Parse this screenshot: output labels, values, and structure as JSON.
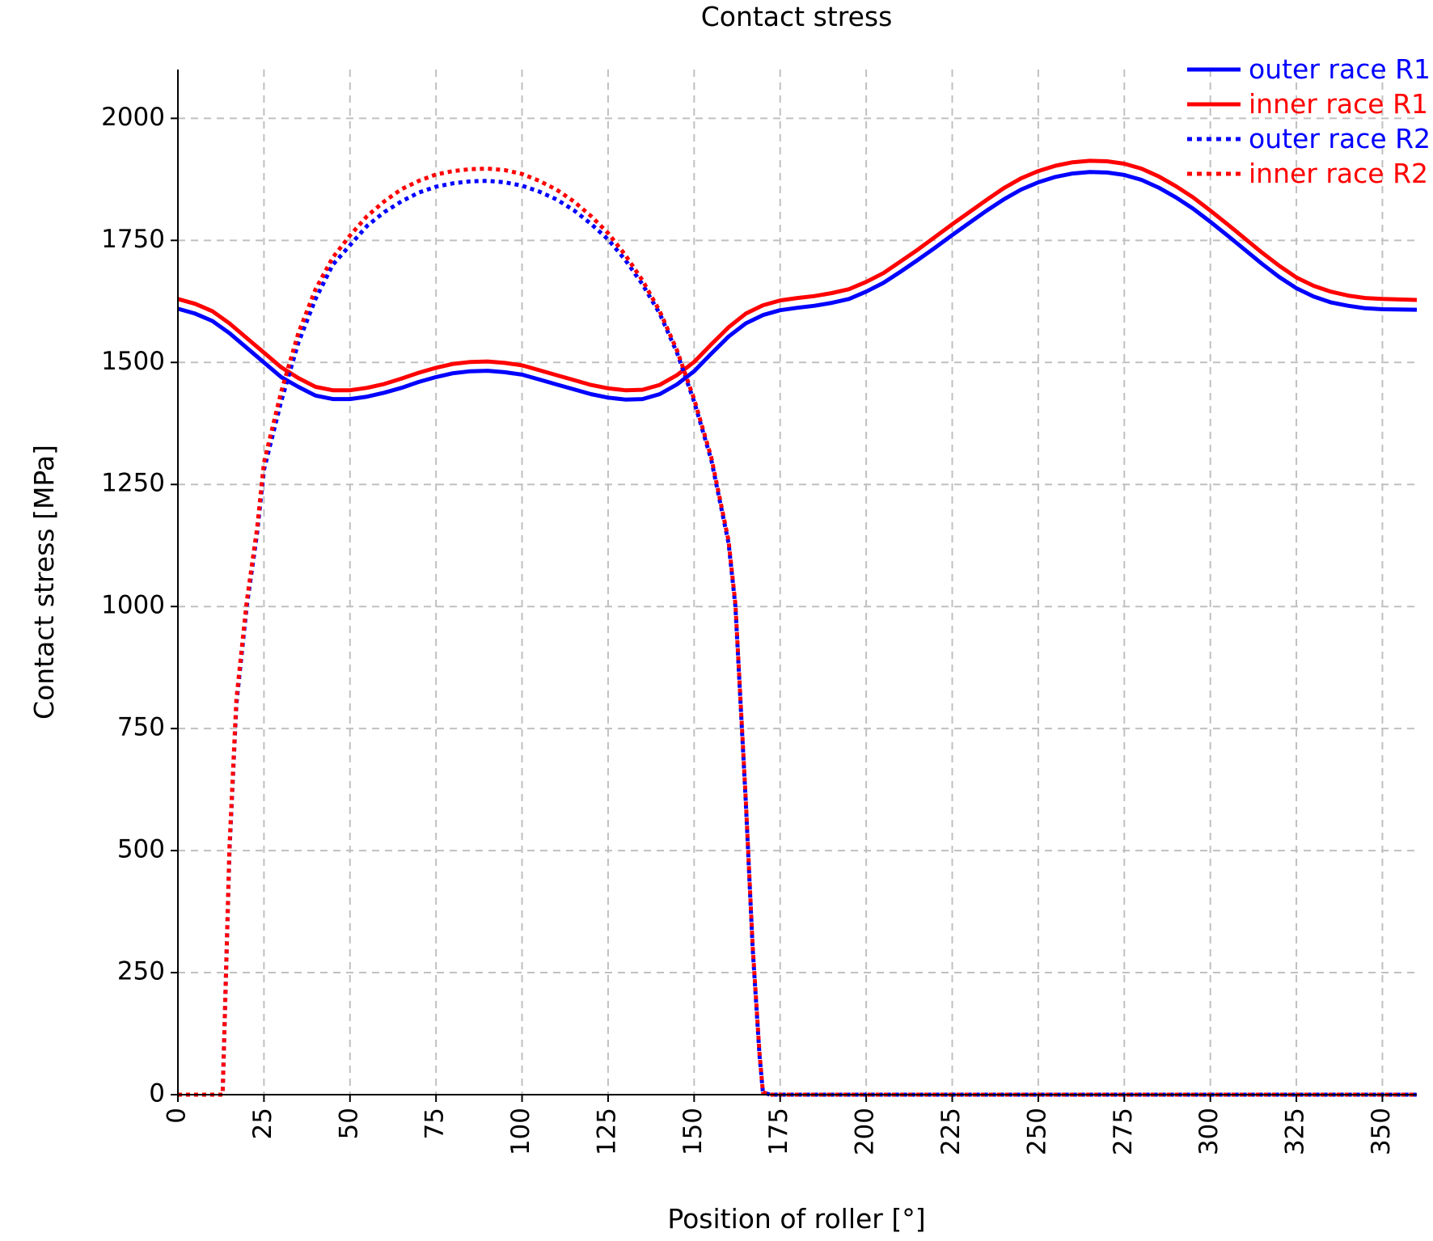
{
  "chart_data": {
    "type": "line",
    "title": "Contact stress",
    "xlabel": "Position of roller [°]",
    "ylabel": "Contact stress [MPa]",
    "xlim": [
      0,
      360
    ],
    "ylim": [
      0,
      2100
    ],
    "x_ticks": [
      0,
      25,
      50,
      75,
      100,
      125,
      150,
      175,
      200,
      225,
      250,
      275,
      300,
      325,
      350
    ],
    "y_ticks": [
      0,
      250,
      500,
      750,
      1000,
      1250,
      1500,
      1750,
      2000
    ],
    "grid": true,
    "legend_position": "top-right",
    "series": [
      {
        "name": "outer race R1",
        "color": "#0000ff",
        "style": "solid",
        "points": [
          [
            0,
            1610
          ],
          [
            5,
            1600
          ],
          [
            10,
            1585
          ],
          [
            15,
            1560
          ],
          [
            20,
            1530
          ],
          [
            25,
            1500
          ],
          [
            30,
            1470
          ],
          [
            35,
            1450
          ],
          [
            40,
            1432
          ],
          [
            45,
            1425
          ],
          [
            50,
            1425
          ],
          [
            55,
            1430
          ],
          [
            60,
            1438
          ],
          [
            65,
            1448
          ],
          [
            70,
            1460
          ],
          [
            75,
            1470
          ],
          [
            80,
            1478
          ],
          [
            85,
            1482
          ],
          [
            90,
            1483
          ],
          [
            95,
            1480
          ],
          [
            100,
            1475
          ],
          [
            105,
            1465
          ],
          [
            110,
            1455
          ],
          [
            115,
            1445
          ],
          [
            120,
            1435
          ],
          [
            125,
            1428
          ],
          [
            130,
            1424
          ],
          [
            135,
            1425
          ],
          [
            140,
            1435
          ],
          [
            145,
            1455
          ],
          [
            150,
            1482
          ],
          [
            155,
            1518
          ],
          [
            160,
            1553
          ],
          [
            165,
            1580
          ],
          [
            170,
            1597
          ],
          [
            175,
            1607
          ],
          [
            180,
            1612
          ],
          [
            185,
            1616
          ],
          [
            190,
            1622
          ],
          [
            195,
            1630
          ],
          [
            200,
            1645
          ],
          [
            205,
            1663
          ],
          [
            210,
            1686
          ],
          [
            215,
            1710
          ],
          [
            220,
            1735
          ],
          [
            225,
            1761
          ],
          [
            230,
            1786
          ],
          [
            235,
            1811
          ],
          [
            240,
            1834
          ],
          [
            245,
            1854
          ],
          [
            250,
            1869
          ],
          [
            255,
            1880
          ],
          [
            260,
            1887
          ],
          [
            265,
            1890
          ],
          [
            270,
            1889
          ],
          [
            275,
            1884
          ],
          [
            280,
            1874
          ],
          [
            285,
            1858
          ],
          [
            290,
            1838
          ],
          [
            295,
            1815
          ],
          [
            300,
            1788
          ],
          [
            305,
            1760
          ],
          [
            310,
            1731
          ],
          [
            315,
            1702
          ],
          [
            320,
            1675
          ],
          [
            325,
            1652
          ],
          [
            330,
            1635
          ],
          [
            335,
            1623
          ],
          [
            340,
            1616
          ],
          [
            345,
            1611
          ],
          [
            350,
            1609
          ],
          [
            360,
            1608
          ]
        ]
      },
      {
        "name": "inner race R1",
        "color": "#ff0000",
        "style": "solid",
        "points": [
          [
            0,
            1630
          ],
          [
            5,
            1620
          ],
          [
            10,
            1605
          ],
          [
            15,
            1580
          ],
          [
            20,
            1550
          ],
          [
            25,
            1520
          ],
          [
            30,
            1490
          ],
          [
            35,
            1468
          ],
          [
            40,
            1450
          ],
          [
            45,
            1443
          ],
          [
            50,
            1443
          ],
          [
            55,
            1448
          ],
          [
            60,
            1456
          ],
          [
            65,
            1467
          ],
          [
            70,
            1479
          ],
          [
            75,
            1489
          ],
          [
            80,
            1497
          ],
          [
            85,
            1501
          ],
          [
            90,
            1502
          ],
          [
            95,
            1499
          ],
          [
            100,
            1494
          ],
          [
            105,
            1484
          ],
          [
            110,
            1474
          ],
          [
            115,
            1464
          ],
          [
            120,
            1454
          ],
          [
            125,
            1447
          ],
          [
            130,
            1443
          ],
          [
            135,
            1444
          ],
          [
            140,
            1454
          ],
          [
            145,
            1474
          ],
          [
            150,
            1501
          ],
          [
            155,
            1537
          ],
          [
            160,
            1572
          ],
          [
            165,
            1600
          ],
          [
            170,
            1617
          ],
          [
            175,
            1627
          ],
          [
            180,
            1632
          ],
          [
            185,
            1636
          ],
          [
            190,
            1642
          ],
          [
            195,
            1650
          ],
          [
            200,
            1665
          ],
          [
            205,
            1683
          ],
          [
            210,
            1707
          ],
          [
            215,
            1731
          ],
          [
            220,
            1757
          ],
          [
            225,
            1783
          ],
          [
            230,
            1808
          ],
          [
            235,
            1833
          ],
          [
            240,
            1857
          ],
          [
            245,
            1877
          ],
          [
            250,
            1892
          ],
          [
            255,
            1903
          ],
          [
            260,
            1910
          ],
          [
            265,
            1913
          ],
          [
            270,
            1912
          ],
          [
            275,
            1907
          ],
          [
            280,
            1897
          ],
          [
            285,
            1881
          ],
          [
            290,
            1861
          ],
          [
            295,
            1838
          ],
          [
            300,
            1811
          ],
          [
            305,
            1783
          ],
          [
            310,
            1754
          ],
          [
            315,
            1725
          ],
          [
            320,
            1698
          ],
          [
            325,
            1674
          ],
          [
            330,
            1657
          ],
          [
            335,
            1645
          ],
          [
            340,
            1637
          ],
          [
            345,
            1632
          ],
          [
            350,
            1630
          ],
          [
            360,
            1628
          ]
        ]
      },
      {
        "name": "outer race R2",
        "color": "#0000ff",
        "style": "dotted",
        "points": [
          [
            0,
            0
          ],
          [
            10,
            0
          ],
          [
            13,
            0
          ],
          [
            15,
            500
          ],
          [
            17,
            800
          ],
          [
            20,
            1000
          ],
          [
            23,
            1150
          ],
          [
            25,
            1280
          ],
          [
            30,
            1420
          ],
          [
            35,
            1540
          ],
          [
            40,
            1630
          ],
          [
            45,
            1700
          ],
          [
            50,
            1740
          ],
          [
            55,
            1780
          ],
          [
            60,
            1808
          ],
          [
            65,
            1830
          ],
          [
            70,
            1848
          ],
          [
            75,
            1860
          ],
          [
            80,
            1867
          ],
          [
            85,
            1871
          ],
          [
            90,
            1872
          ],
          [
            95,
            1869
          ],
          [
            100,
            1862
          ],
          [
            105,
            1850
          ],
          [
            110,
            1834
          ],
          [
            115,
            1812
          ],
          [
            120,
            1784
          ],
          [
            125,
            1752
          ],
          [
            130,
            1710
          ],
          [
            135,
            1660
          ],
          [
            140,
            1600
          ],
          [
            145,
            1520
          ],
          [
            150,
            1420
          ],
          [
            155,
            1300
          ],
          [
            160,
            1130
          ],
          [
            162,
            1000
          ],
          [
            165,
            600
          ],
          [
            167,
            300
          ],
          [
            169,
            80
          ],
          [
            170,
            5
          ],
          [
            172,
            0
          ],
          [
            360,
            0
          ]
        ]
      },
      {
        "name": "inner race R2",
        "color": "#ff0000",
        "style": "dotted",
        "points": [
          [
            0,
            0
          ],
          [
            10,
            0
          ],
          [
            13,
            0
          ],
          [
            15,
            510
          ],
          [
            17,
            810
          ],
          [
            20,
            1010
          ],
          [
            23,
            1160
          ],
          [
            25,
            1295
          ],
          [
            30,
            1440
          ],
          [
            35,
            1560
          ],
          [
            40,
            1650
          ],
          [
            45,
            1715
          ],
          [
            50,
            1760
          ],
          [
            55,
            1800
          ],
          [
            60,
            1830
          ],
          [
            65,
            1855
          ],
          [
            70,
            1872
          ],
          [
            75,
            1885
          ],
          [
            80,
            1892
          ],
          [
            85,
            1896
          ],
          [
            90,
            1897
          ],
          [
            95,
            1894
          ],
          [
            100,
            1886
          ],
          [
            105,
            1872
          ],
          [
            110,
            1854
          ],
          [
            115,
            1830
          ],
          [
            120,
            1800
          ],
          [
            125,
            1765
          ],
          [
            130,
            1720
          ],
          [
            135,
            1668
          ],
          [
            140,
            1605
          ],
          [
            145,
            1525
          ],
          [
            150,
            1425
          ],
          [
            155,
            1305
          ],
          [
            160,
            1135
          ],
          [
            162,
            1005
          ],
          [
            165,
            605
          ],
          [
            167,
            305
          ],
          [
            169,
            85
          ],
          [
            170,
            5
          ],
          [
            172,
            0
          ],
          [
            360,
            0
          ]
        ]
      }
    ]
  }
}
